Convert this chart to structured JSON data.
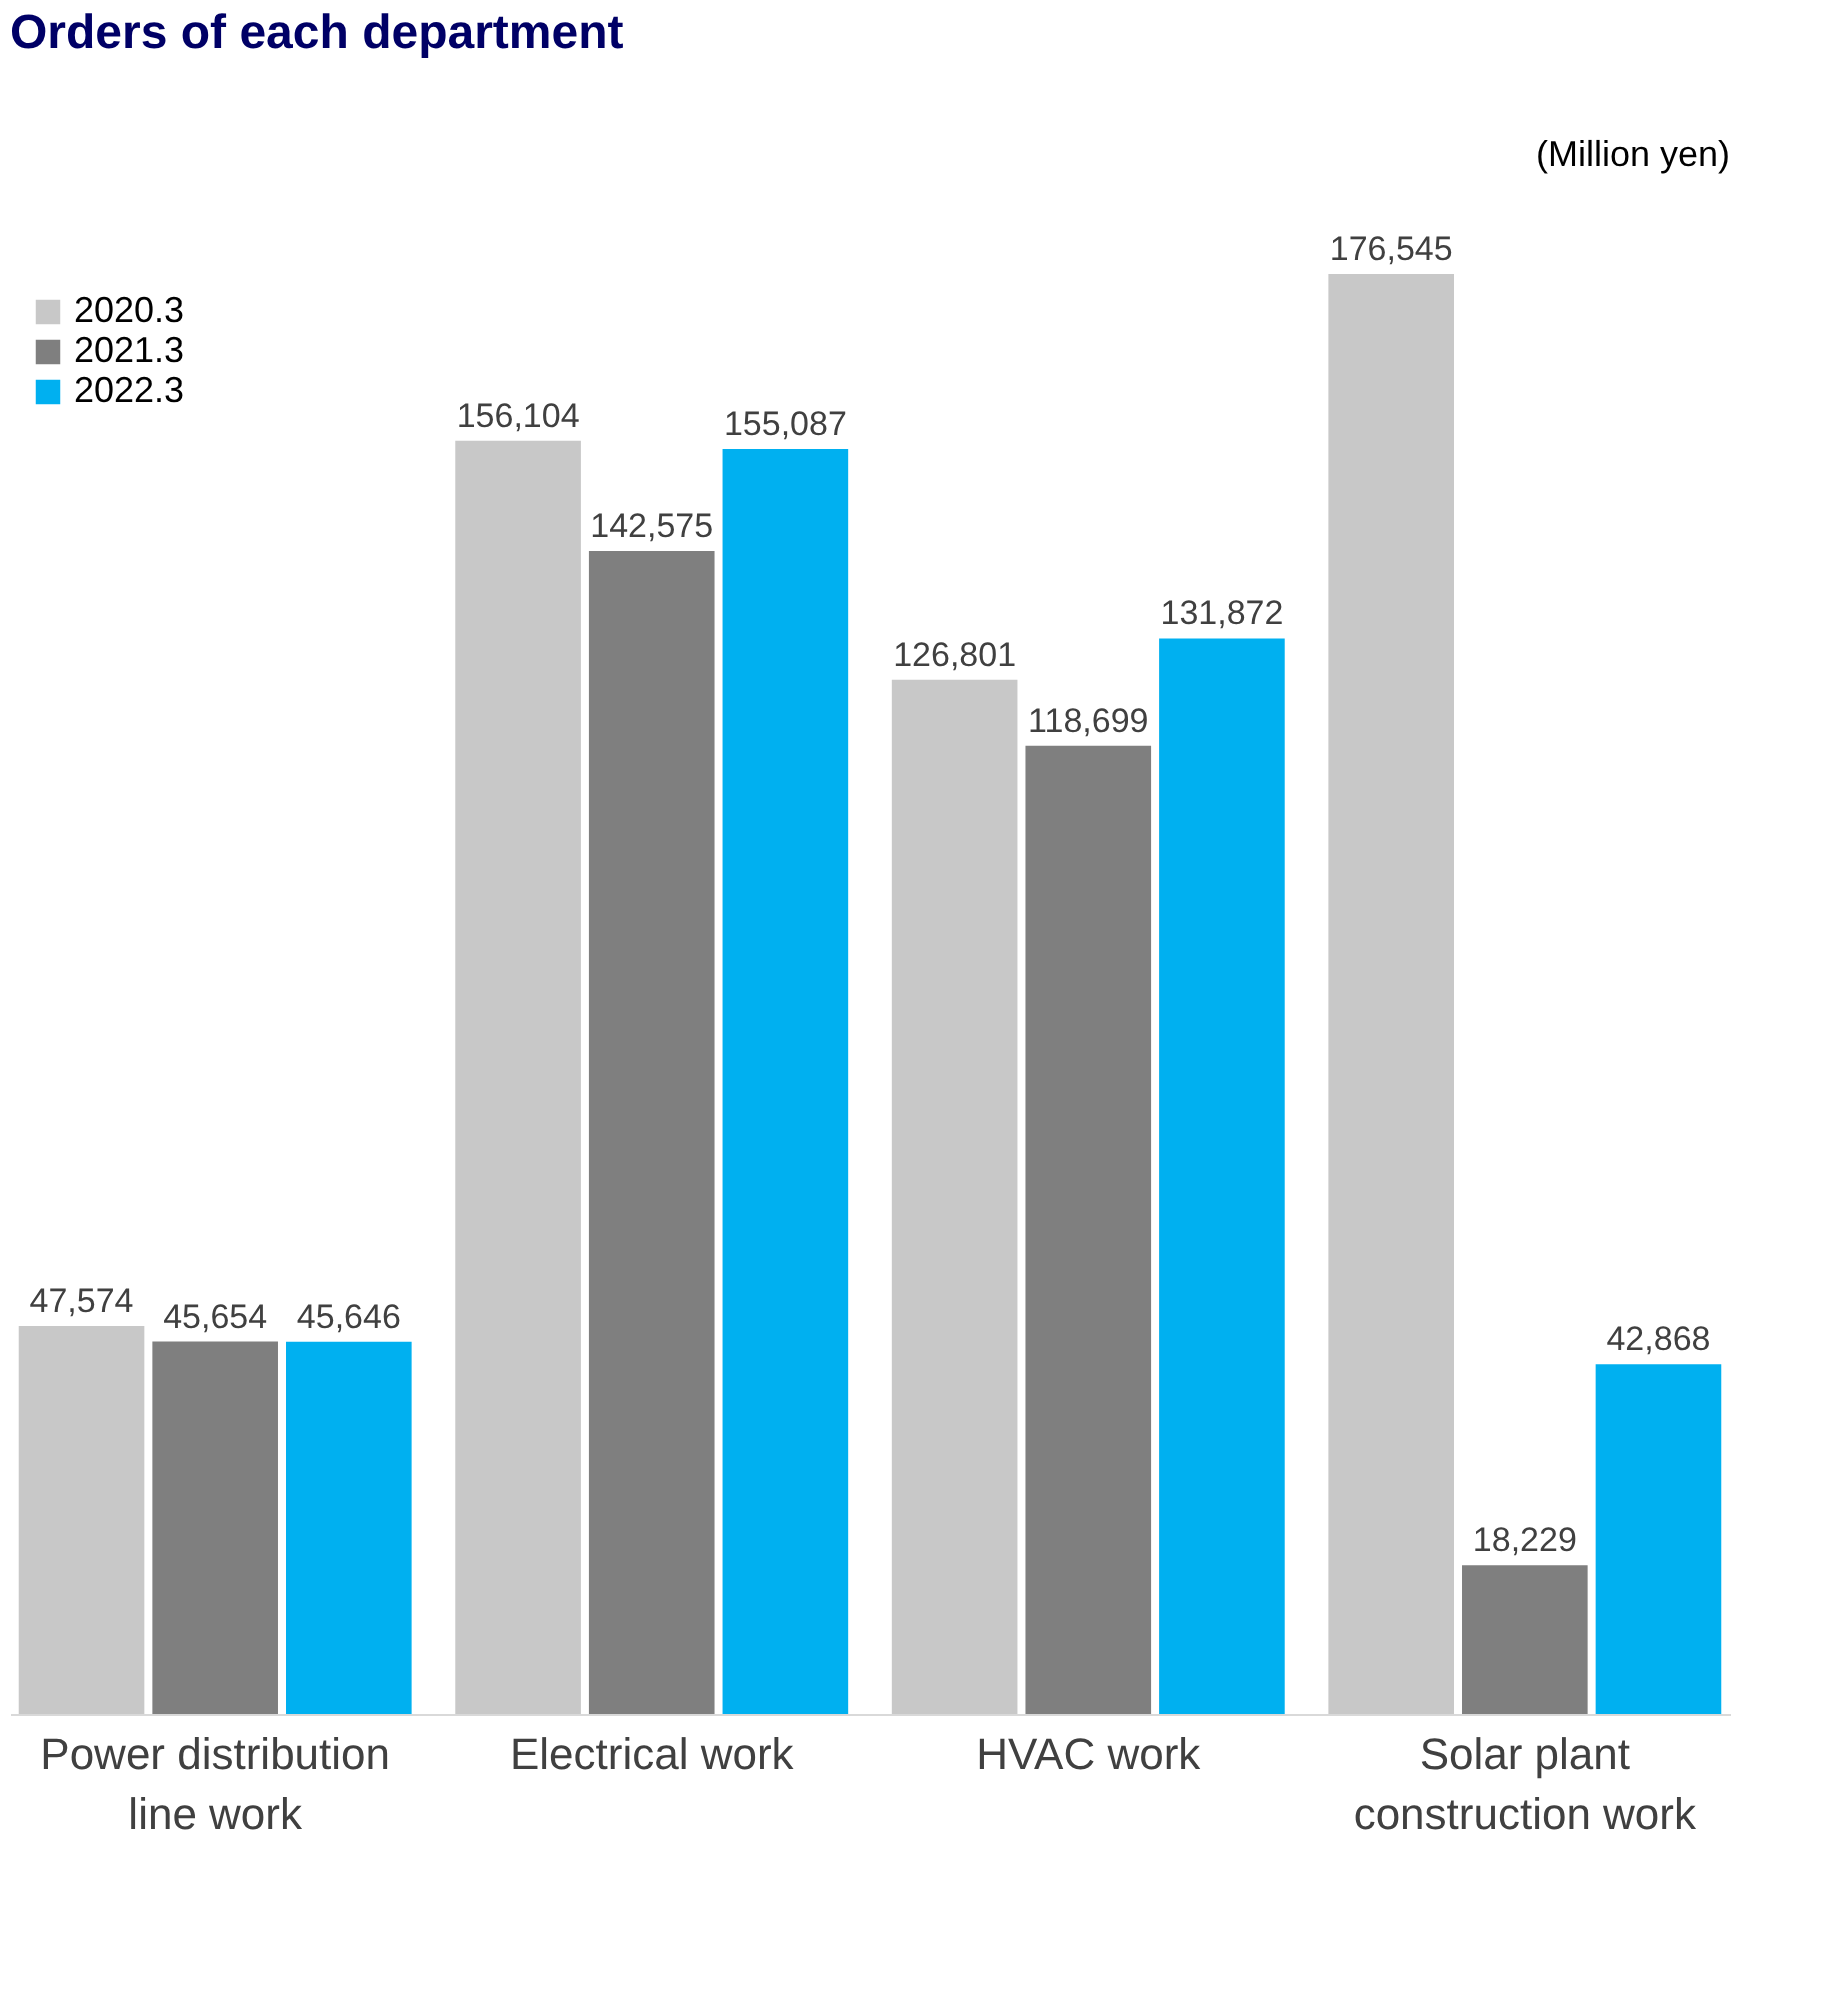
{
  "chart_data": {
    "type": "bar",
    "title": "Orders of each department",
    "categories": [
      "Power distribution line work",
      "Electrical work",
      "HVAC work",
      "Solar plant construction work"
    ],
    "series": [
      {
        "name": "2020.3",
        "color": "#c8c8c8",
        "values": [
          47574,
          156104,
          126801,
          176545
        ],
        "value_labels": [
          "47,574",
          "156,104",
          "126,801",
          "176,545"
        ]
      },
      {
        "name": "2021.3",
        "color": "#7f7f7f",
        "values": [
          45654,
          142575,
          118699,
          18229
        ],
        "value_labels": [
          "45,654",
          "142,575",
          "118,699",
          "18,229"
        ]
      },
      {
        "name": "2022.3",
        "color": "#00b0f0",
        "values": [
          45646,
          155087,
          131872,
          42868
        ],
        "value_labels": [
          "45,646",
          "155,087",
          "131,872",
          "42,868"
        ]
      }
    ],
    "legend": "top left",
    "grid": false,
    "annotations": [
      "(Million yen)"
    ]
  }
}
